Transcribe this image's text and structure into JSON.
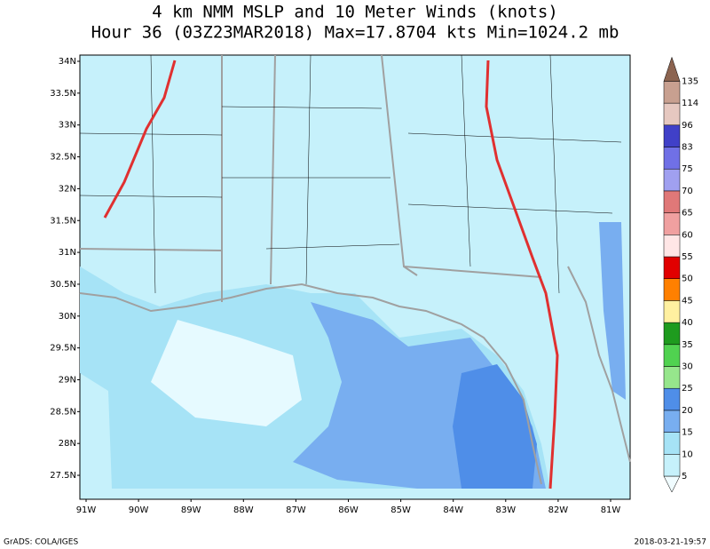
{
  "title": [
    "4 km NMM MSLP and 10 Meter Winds (knots)",
    "Hour 36 (03Z23MAR2018) Max=17.8704 kts Min=1024.2 mb"
  ],
  "lat_labels": [
    "34N",
    "33.5N",
    "33N",
    "32.5N",
    "32N",
    "31.5N",
    "31N",
    "30.5N",
    "30N",
    "29.5N",
    "29N",
    "28.5N",
    "28N",
    "27.5N"
  ],
  "lon_labels": [
    "91W",
    "90W",
    "89W",
    "88W",
    "87W",
    "86W",
    "85W",
    "84W",
    "83W",
    "82W",
    "81W"
  ],
  "colorbar": {
    "levels": [
      "5",
      "10",
      "15",
      "20",
      "25",
      "30",
      "35",
      "40",
      "45",
      "50",
      "55",
      "60",
      "65",
      "70",
      "75",
      "83",
      "96",
      "114",
      "135"
    ],
    "colors": [
      "#f0fcff",
      "#c6f1fb",
      "#a6e3f6",
      "#78aef0",
      "#4f8ee8",
      "#96e68c",
      "#50d250",
      "#1e9b1e",
      "#fff0a0",
      "#ff8000",
      "#e10000",
      "#ffe6e6",
      "#f0a0a0",
      "#e07878",
      "#a0a0f0",
      "#7070e6",
      "#4040c8",
      "#e6c8c0",
      "#c8a090",
      "#8c6450"
    ]
  },
  "footer": {
    "left": "GrADS: COLA/IGES",
    "right": "2018-03-21-19:57"
  }
}
